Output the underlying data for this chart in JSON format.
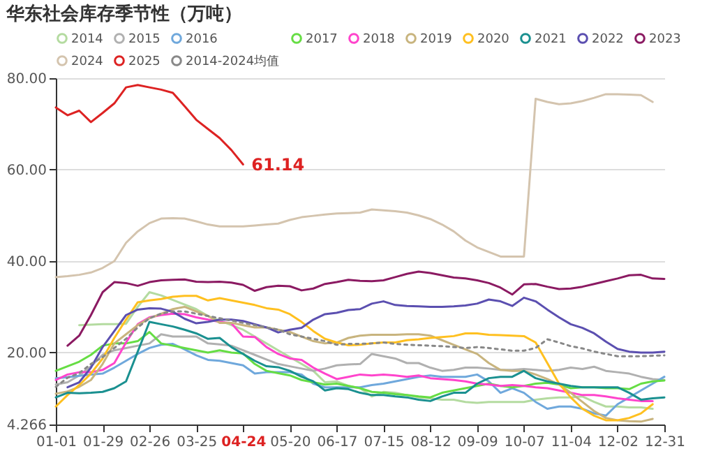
{
  "chart_data": {
    "type": "line",
    "title": "华东社会库存季节性（万吨）",
    "categories": [
      "01-01",
      null,
      null,
      null,
      "01-29",
      null,
      null,
      null,
      "02-26",
      null,
      null,
      null,
      "03-25",
      null,
      null,
      null,
      "04-24",
      null,
      null,
      null,
      "05-20",
      null,
      null,
      null,
      "06-17",
      null,
      null,
      null,
      "07-15",
      null,
      null,
      null,
      "08-12",
      null,
      null,
      null,
      "09-09",
      null,
      null,
      null,
      "10-07",
      null,
      null,
      null,
      "11-04",
      null,
      null,
      null,
      "12-02",
      null,
      null,
      null,
      "12-31"
    ],
    "series": [
      {
        "name": "2014",
        "color": "#b4dba0",
        "values": [
          null,
          null,
          26.0,
          26.1,
          26.2,
          26.2,
          26.3,
          30.0,
          33.2,
          32.5,
          31.5,
          30.5,
          29.5,
          28.0,
          27.0,
          26.0,
          25.0,
          23.5,
          22.0,
          20.5,
          19.0,
          17.5,
          16.0,
          13.5,
          13.7,
          12.7,
          12.2,
          10.4,
          11.4,
          11.2,
          10.7,
          10.2,
          10.0,
          9.7,
          9.7,
          9.2,
          9.0,
          9.2,
          9.2,
          9.2,
          9.2,
          9.7,
          10.0,
          10.2,
          10.2,
          10.4,
          9.2,
          8.2,
          8.2,
          8.0,
          8.0,
          7.7,
          null
        ]
      },
      {
        "name": "2015",
        "color": "#b0b0b0",
        "values": [
          13.0,
          13.5,
          15.0,
          17.0,
          19.5,
          20.5,
          21.0,
          21.5,
          22.0,
          24.0,
          23.5,
          23.5,
          23.5,
          22.0,
          21.8,
          21.5,
          20.5,
          19.5,
          18.5,
          17.5,
          17.0,
          16.5,
          16.0,
          16.5,
          17.2,
          17.4,
          17.5,
          19.7,
          19.2,
          18.7,
          17.7,
          17.7,
          16.7,
          16.0,
          16.2,
          16.7,
          16.7,
          16.5,
          16.2,
          16.2,
          16.4,
          16.2,
          16.0,
          16.2,
          16.7,
          16.4,
          16.9,
          16.0,
          15.7,
          15.4,
          14.7,
          14.2,
          14.0
        ]
      },
      {
        "name": "2016",
        "color": "#6fa8dc",
        "values": [
          14.4,
          14.6,
          14.9,
          15.2,
          15.4,
          16.7,
          18.2,
          19.7,
          21.0,
          21.7,
          21.9,
          20.7,
          19.4,
          18.4,
          18.2,
          17.7,
          17.2,
          15.4,
          15.7,
          15.7,
          15.7,
          15.2,
          13.2,
          12.4,
          12.4,
          12.4,
          12.4,
          12.9,
          13.2,
          13.7,
          14.2,
          14.7,
          15.0,
          14.7,
          14.7,
          14.7,
          15.2,
          13.7,
          11.2,
          12.2,
          11.2,
          9.2,
          7.7,
          8.2,
          8.2,
          7.7,
          6.7,
          6.2,
          8.7,
          10.2,
          11.7,
          13.2,
          14.7
        ]
      },
      {
        "name": "2017",
        "color": "#66dd44",
        "values": [
          16.0,
          17.0,
          18.0,
          19.5,
          21.5,
          22.0,
          22.0,
          22.5,
          24.5,
          22.0,
          21.5,
          21.0,
          20.5,
          20.0,
          20.5,
          20.0,
          19.8,
          17.5,
          16.0,
          15.5,
          15.0,
          14.0,
          13.5,
          13.0,
          13.2,
          12.7,
          12.2,
          11.4,
          11.2,
          10.9,
          10.7,
          10.4,
          10.2,
          11.2,
          11.7,
          12.2,
          12.7,
          13.2,
          12.7,
          12.4,
          12.7,
          13.2,
          13.4,
          13.0,
          12.2,
          12.4,
          12.4,
          12.2,
          12.2,
          12.0,
          13.2,
          13.7,
          13.9
        ]
      },
      {
        "name": "2018",
        "color": "#ff44cc",
        "values": [
          14.0,
          15.2,
          15.7,
          15.7,
          16.2,
          17.7,
          22.2,
          26.2,
          27.7,
          28.2,
          28.5,
          28.4,
          27.7,
          27.2,
          26.7,
          26.4,
          23.5,
          23.4,
          21.2,
          19.7,
          18.7,
          18.4,
          16.7,
          15.4,
          14.2,
          14.7,
          15.2,
          15.0,
          15.2,
          15.0,
          14.7,
          15.0,
          14.4,
          14.2,
          14.0,
          13.7,
          13.2,
          13.0,
          12.7,
          12.9,
          12.7,
          12.4,
          12.2,
          11.7,
          11.2,
          10.7,
          10.7,
          10.4,
          10.0,
          9.7,
          9.4,
          9.4,
          null
        ]
      },
      {
        "name": "2019",
        "color": "#c8b47e",
        "values": [
          11.0,
          11.5,
          12.5,
          14.0,
          17.5,
          22.0,
          24.0,
          26.0,
          27.5,
          28.5,
          29.5,
          30.0,
          29.0,
          28.0,
          26.5,
          26.5,
          26.0,
          25.5,
          25.5,
          25.0,
          24.5,
          23.5,
          22.5,
          22.0,
          22.2,
          23.2,
          23.7,
          23.9,
          23.9,
          23.9,
          24.0,
          24.0,
          23.7,
          22.7,
          21.7,
          20.7,
          19.7,
          17.7,
          16.2,
          16.0,
          16.0,
          15.2,
          14.2,
          13.0,
          11.2,
          9.2,
          7.2,
          5.7,
          5.2,
          5.0,
          4.9,
          5.5,
          null
        ]
      },
      {
        "name": "2020",
        "color": "#ffc020",
        "values": [
          8.2,
          10.7,
          12.9,
          15.4,
          18.7,
          23.2,
          27.2,
          31.0,
          31.4,
          31.7,
          32.2,
          32.4,
          32.4,
          31.4,
          31.9,
          31.4,
          30.9,
          30.4,
          29.7,
          29.4,
          28.4,
          26.7,
          24.7,
          23.0,
          22.2,
          21.6,
          21.7,
          22.0,
          22.2,
          22.2,
          22.7,
          22.9,
          23.2,
          23.4,
          23.6,
          24.2,
          24.2,
          23.9,
          23.8,
          23.7,
          23.6,
          22.2,
          17.7,
          13.2,
          10.2,
          7.7,
          6.2,
          5.2,
          5.2,
          5.7,
          6.7,
          8.7,
          null
        ]
      },
      {
        "name": "2021",
        "color": "#1a9090",
        "values": [
          10.2,
          11.2,
          11.1,
          11.2,
          11.4,
          12.2,
          13.7,
          20.2,
          26.7,
          26.2,
          25.7,
          25.0,
          24.2,
          23.0,
          23.2,
          21.2,
          19.7,
          18.2,
          17.0,
          16.8,
          16.0,
          14.7,
          13.7,
          11.7,
          12.2,
          12.0,
          11.2,
          10.7,
          10.7,
          10.4,
          10.2,
          9.7,
          9.4,
          10.4,
          11.2,
          11.2,
          13.2,
          14.4,
          14.7,
          14.7,
          16.0,
          14.4,
          13.7,
          13.2,
          12.7,
          12.4,
          12.4,
          12.4,
          12.4,
          11.2,
          9.7,
          10.0,
          10.2
        ]
      },
      {
        "name": "2022",
        "color": "#5b4fb0",
        "values": [
          null,
          12.4,
          13.5,
          16.7,
          21.2,
          24.7,
          28.2,
          29.4,
          29.7,
          29.6,
          28.9,
          27.4,
          26.4,
          26.7,
          27.2,
          27.2,
          26.9,
          26.2,
          25.5,
          24.4,
          25.0,
          25.4,
          27.2,
          28.4,
          28.7,
          29.3,
          29.5,
          30.7,
          31.2,
          30.4,
          30.2,
          30.1,
          30.0,
          30.0,
          30.1,
          30.3,
          30.7,
          31.6,
          31.2,
          30.2,
          32.0,
          31.2,
          29.4,
          27.7,
          26.2,
          25.4,
          24.2,
          22.4,
          20.8,
          20.2,
          20.0,
          20.0,
          20.2
        ]
      },
      {
        "name": "2023",
        "color": "#8b1a62",
        "values": [
          null,
          21.5,
          23.7,
          28.2,
          33.2,
          35.4,
          35.2,
          34.6,
          35.4,
          35.8,
          35.9,
          36.0,
          35.5,
          35.4,
          35.5,
          35.3,
          34.8,
          33.5,
          34.3,
          34.6,
          34.5,
          33.6,
          34.0,
          35.0,
          35.4,
          35.9,
          35.7,
          35.6,
          35.8,
          36.5,
          37.2,
          37.7,
          37.4,
          36.9,
          36.4,
          36.2,
          35.8,
          35.2,
          34.2,
          32.7,
          34.9,
          35.0,
          34.4,
          33.9,
          34.0,
          34.4,
          35.0,
          35.6,
          36.2,
          36.9,
          37.0,
          36.2,
          36.1
        ]
      },
      {
        "name": "2024",
        "color": "#d4c4ae",
        "values": [
          36.5,
          36.7,
          37.0,
          37.5,
          38.5,
          40.0,
          44.0,
          46.5,
          48.3,
          49.3,
          49.4,
          49.3,
          48.7,
          48.0,
          47.6,
          47.6,
          47.6,
          47.8,
          48.0,
          48.2,
          49.0,
          49.6,
          49.9,
          50.2,
          50.4,
          50.5,
          50.6,
          51.3,
          51.1,
          50.9,
          50.6,
          50.0,
          49.2,
          48.0,
          46.5,
          44.5,
          43.0,
          42.0,
          41.0,
          41.0,
          41.0,
          75.5,
          74.8,
          74.3,
          74.5,
          75.0,
          75.7,
          76.5,
          76.5,
          76.4,
          76.3,
          74.8,
          null
        ]
      },
      {
        "name": "2025",
        "color": "#dd2222",
        "values": [
          73.6,
          71.9,
          72.9,
          70.4,
          72.4,
          74.5,
          78.0,
          78.5,
          78.0,
          77.5,
          76.8,
          73.9,
          70.9,
          68.9,
          66.9,
          64.3,
          61.14,
          null,
          null,
          null,
          null,
          null,
          null,
          null,
          null,
          null,
          null,
          null,
          null,
          null,
          null,
          null,
          null,
          null,
          null,
          null,
          null,
          null,
          null,
          null,
          null,
          null,
          null,
          null,
          null,
          null,
          null,
          null,
          null,
          null,
          null,
          null,
          null
        ]
      },
      {
        "name": "2014-2024均值",
        "color": "#888888",
        "line_style": "dotted",
        "values": [
          12.5,
          14.5,
          15.5,
          17.5,
          19.0,
          21.0,
          23.0,
          25.5,
          27.5,
          28.5,
          29.0,
          29.0,
          28.5,
          28.0,
          27.5,
          27.0,
          26.5,
          26.0,
          25.5,
          25.0,
          24.0,
          23.5,
          23.0,
          22.5,
          21.7,
          21.9,
          21.9,
          22.0,
          22.2,
          21.9,
          21.7,
          21.6,
          21.5,
          21.4,
          21.2,
          21.0,
          21.2,
          21.0,
          20.7,
          20.4,
          20.4,
          21.0,
          22.9,
          22.2,
          21.4,
          20.9,
          20.2,
          19.7,
          19.2,
          19.2,
          19.2,
          19.3,
          19.4
        ]
      }
    ],
    "ylim": [
      4.266,
      80
    ],
    "yticks": [
      4.266,
      {
        "value": 20,
        "label": "20.00"
      },
      {
        "value": 40,
        "label": "40.00"
      },
      {
        "value": 60,
        "label": "60.00"
      },
      {
        "value": 80,
        "label": "80.00"
      }
    ],
    "grid": "y",
    "legend": "top",
    "annotations": [
      "61.14"
    ]
  }
}
